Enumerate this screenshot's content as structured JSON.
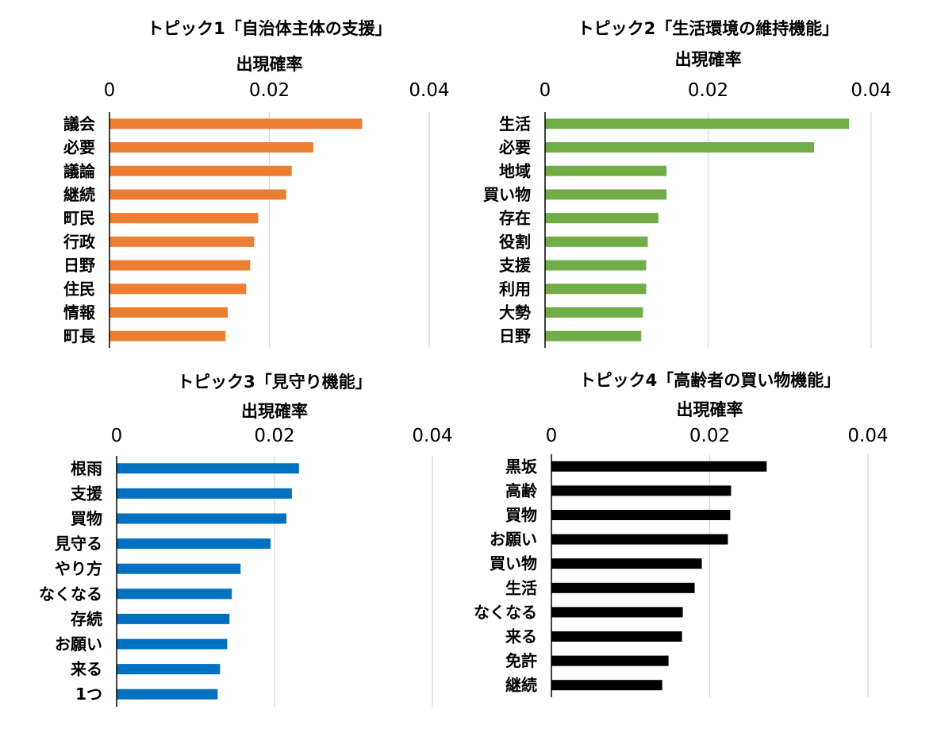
{
  "chart_data": [
    {
      "type": "bar",
      "orientation": "horizontal",
      "title": "トピック1「自治体主体の支援」",
      "xlabel": "出現確率",
      "xlim": [
        0,
        0.04
      ],
      "xticks": [
        "0",
        "0.02",
        "0.04"
      ],
      "grid": true,
      "color": "#ED7D31",
      "categories": [
        "議会",
        "必要",
        "議論",
        "継続",
        "町民",
        "行政",
        "日野",
        "住民",
        "情報",
        "町長"
      ],
      "values": [
        0.0316,
        0.0255,
        0.0228,
        0.0221,
        0.0186,
        0.0181,
        0.0176,
        0.0171,
        0.0148,
        0.0145
      ]
    },
    {
      "type": "bar",
      "orientation": "horizontal",
      "title": "トピック2「生活環境の維持機能」",
      "xlabel": "出現確率",
      "xlim": [
        0,
        0.04
      ],
      "xticks": [
        "0",
        "0.02",
        "0.04"
      ],
      "grid": true,
      "color": "#70AD47",
      "categories": [
        "生活",
        "必要",
        "地域",
        "買い物",
        "存在",
        "役割",
        "支援",
        "利用",
        "大勢",
        "日野"
      ],
      "values": [
        0.0373,
        0.033,
        0.0149,
        0.0149,
        0.0139,
        0.0126,
        0.0124,
        0.0124,
        0.012,
        0.0118
      ]
    },
    {
      "type": "bar",
      "orientation": "horizontal",
      "title": "トピック3「見守り機能」",
      "xlabel": "出現確率",
      "xlim": [
        0,
        0.04
      ],
      "xticks": [
        "0",
        "0.02",
        "0.04"
      ],
      "grid": true,
      "color": "#0070C0",
      "categories": [
        "根雨",
        "支援",
        "買物",
        "見守る",
        "やり方",
        "なくなる",
        "存続",
        "お願い",
        "来る",
        "1つ"
      ],
      "values": [
        0.0231,
        0.0222,
        0.0215,
        0.0195,
        0.0157,
        0.0146,
        0.0143,
        0.014,
        0.0131,
        0.0128
      ]
    },
    {
      "type": "bar",
      "orientation": "horizontal",
      "title": "トピック4「高齢者の買い物機能」",
      "xlabel": "出現確率",
      "xlim": [
        0,
        0.04
      ],
      "xticks": [
        "0",
        "0.02",
        "0.04"
      ],
      "grid": true,
      "color": "#000000",
      "categories": [
        "黒坂",
        "高齢",
        "買物",
        "お願い",
        "買い物",
        "生活",
        "なくなる",
        "来る",
        "免許",
        "継続"
      ],
      "values": [
        0.0272,
        0.0227,
        0.0226,
        0.0223,
        0.019,
        0.0181,
        0.0166,
        0.0165,
        0.0148,
        0.014
      ]
    }
  ]
}
